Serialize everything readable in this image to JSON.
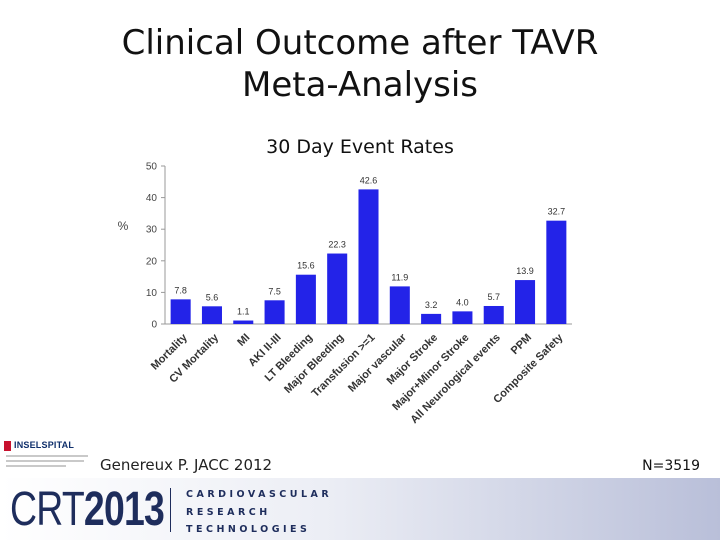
{
  "slide": {
    "title_line1": "Clinical Outcome after TAVR",
    "title_line2": "Meta-Analysis",
    "citation": "Genereux P. JACC 2012",
    "sample_size": "N=3519"
  },
  "branding": {
    "insel_name": "INSELSPITAL",
    "crt_letters": "CRT",
    "crt_year": "2013",
    "crt_line1": "CARDIOVASCULAR",
    "crt_line2": "RESEARCH",
    "crt_line3": "TECHNOLOGIES"
  },
  "chart_data": {
    "type": "bar",
    "title": "30 Day Event Rates",
    "ylabel": "%",
    "xlabel": "",
    "ylim": [
      0,
      50
    ],
    "yticks": [
      0,
      10,
      20,
      30,
      40,
      50
    ],
    "grid": false,
    "bar_color": "#2323e8",
    "categories": [
      "Mortality",
      "CV Mortality",
      "MI",
      "AKI II-III",
      "LT Bleeding",
      "Major Bleeding",
      "Transfusion >=1",
      "Major vascular",
      "Major Stroke",
      "Major+Minor Stroke",
      "All Neurological events",
      "PPM",
      "Composite Safety"
    ],
    "values": [
      7.8,
      5.6,
      1.1,
      7.5,
      15.6,
      22.3,
      42.6,
      11.9,
      3.2,
      4.0,
      5.7,
      13.9,
      32.7
    ],
    "value_labels": [
      "7.8",
      "5.6",
      "1.1",
      "7.5",
      "15.6",
      "22.3",
      "42.6",
      "11.9",
      "3.2",
      "4.0",
      "5.7",
      "13.9",
      "32.7"
    ]
  }
}
